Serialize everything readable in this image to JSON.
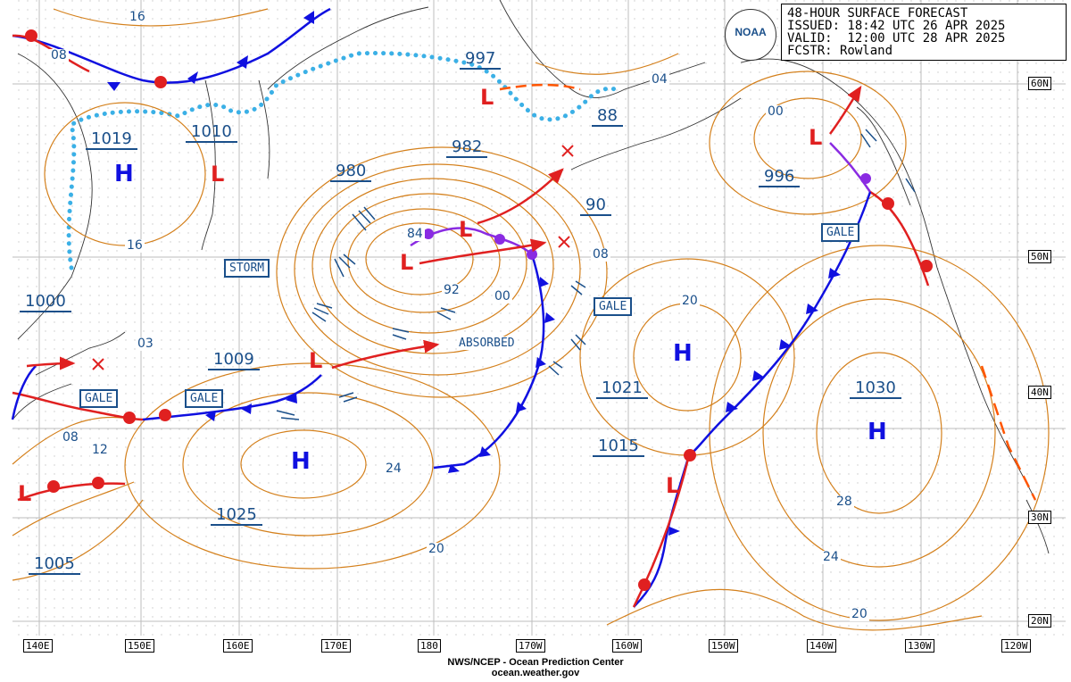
{
  "header": {
    "title": "48-HOUR SURFACE FORECAST",
    "issued": "ISSUED: 18:42 UTC 26 APR 2025",
    "valid": "VALID:  12:00 UTC 28 APR 2025",
    "forecaster": "FCSTR: Rowland",
    "logo_text": "NOAA"
  },
  "footer": {
    "line1": "NWS/NCEP - Ocean Prediction Center",
    "line2": "ocean.weather.gov"
  },
  "colors": {
    "isobar": "#d4801c",
    "label": "#1a4f8a",
    "cold_front": "#1010e0",
    "warm_front": "#e02020",
    "occluded_front": "#8a2be2",
    "trough": "#ff5500",
    "ice": "#3bb0e6",
    "grid": "#c8c8c8",
    "coast": "#333333"
  },
  "lon_labels": [
    "140E",
    "150E",
    "160E",
    "170E",
    "180",
    "170W",
    "160W",
    "150W",
    "140W",
    "130W",
    "120W"
  ],
  "lat_labels": [
    "60N",
    "50N",
    "40N",
    "30N",
    "20N"
  ],
  "pressure_labels": [
    "1019",
    "1010",
    "997",
    "982",
    "980",
    "88",
    "90",
    "996",
    "1000",
    "1009",
    "1021",
    "1030",
    "1015",
    "1025",
    "1005"
  ],
  "isobar_values": [
    "16",
    "08",
    "16",
    "04",
    "00",
    "84",
    "92",
    "00",
    "08",
    "20",
    "03",
    "08",
    "12",
    "24",
    "20",
    "28",
    "24",
    "20"
  ],
  "highs": [
    "H",
    "H",
    "H",
    "H"
  ],
  "lows": [
    "L",
    "L",
    "L",
    "L",
    "L",
    "L",
    "L",
    "L"
  ],
  "boxed_notes": [
    "STORM",
    "GALE",
    "GALE",
    "GALE",
    "GALE"
  ],
  "absorbed_label": "ABSORBED"
}
